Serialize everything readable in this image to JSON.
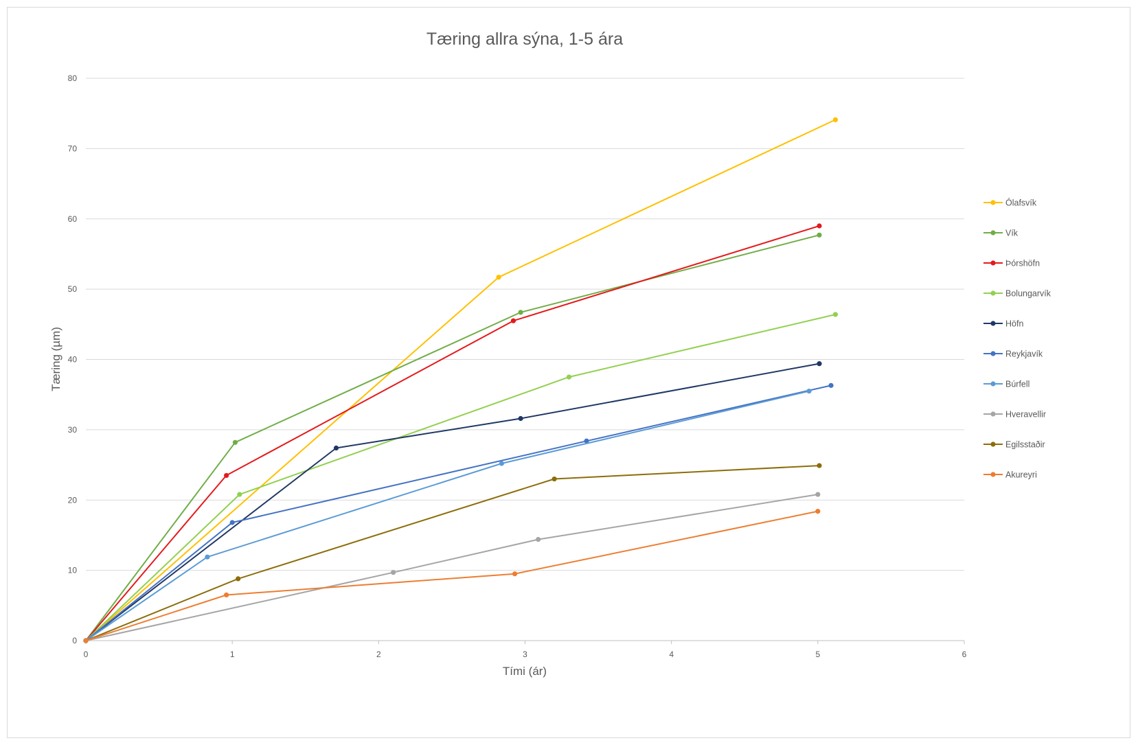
{
  "chart_data": {
    "type": "line",
    "title": "Tæring allra sýna, 1-5 ára",
    "xlabel": "Tími (ár)",
    "ylabel": "Tæring (µm)",
    "xlim": [
      0,
      6
    ],
    "ylim": [
      0,
      80
    ],
    "x_ticks": [
      "0",
      "1",
      "2",
      "3",
      "4",
      "5",
      "6"
    ],
    "y_ticks": [
      "0",
      "10",
      "20",
      "30",
      "40",
      "50",
      "60",
      "70",
      "80"
    ],
    "grid": "horizontal",
    "legend_position": "right",
    "series": [
      {
        "name": "Ólafsvík",
        "color": "#FFC000",
        "points": [
          [
            0,
            0
          ],
          [
            2.82,
            51.7
          ],
          [
            5.12,
            74.1
          ]
        ]
      },
      {
        "name": "Vík",
        "color": "#70AD47",
        "points": [
          [
            0,
            0
          ],
          [
            1.02,
            28.2
          ],
          [
            2.97,
            46.7
          ],
          [
            5.01,
            57.7
          ]
        ]
      },
      {
        "name": "Þórshöfn",
        "color": "#E31A1C",
        "points": [
          [
            0,
            0
          ],
          [
            0.96,
            23.5
          ],
          [
            2.92,
            45.5
          ],
          [
            5.01,
            59.0
          ]
        ]
      },
      {
        "name": "Bolungarvík",
        "color": "#92D050",
        "points": [
          [
            0,
            0
          ],
          [
            1.05,
            20.8
          ],
          [
            3.3,
            37.5
          ],
          [
            5.12,
            46.4
          ]
        ]
      },
      {
        "name": "Höfn",
        "color": "#203864",
        "points": [
          [
            0,
            0
          ],
          [
            1.71,
            27.4
          ],
          [
            2.97,
            31.6
          ],
          [
            5.01,
            39.4
          ]
        ]
      },
      {
        "name": "Reykjavík",
        "color": "#4472C4",
        "points": [
          [
            0,
            0
          ],
          [
            1.0,
            16.8
          ],
          [
            3.42,
            28.4
          ],
          [
            5.09,
            36.3
          ]
        ]
      },
      {
        "name": "Búrfell",
        "color": "#5B9BD5",
        "points": [
          [
            0,
            0
          ],
          [
            0.83,
            11.9
          ],
          [
            2.84,
            25.2
          ],
          [
            4.94,
            35.5
          ]
        ]
      },
      {
        "name": "Hveravellir",
        "color": "#A5A5A5",
        "points": [
          [
            0,
            0
          ],
          [
            2.1,
            9.7
          ],
          [
            3.09,
            14.4
          ],
          [
            5.0,
            20.8
          ]
        ]
      },
      {
        "name": "Egilsstaðir",
        "color": "#8C6D0A",
        "points": [
          [
            0,
            0
          ],
          [
            1.04,
            8.8
          ],
          [
            3.2,
            23.0
          ],
          [
            5.01,
            24.9
          ]
        ]
      },
      {
        "name": "Akureyri",
        "color": "#ED7D31",
        "points": [
          [
            0,
            0
          ],
          [
            0.96,
            6.5
          ],
          [
            2.93,
            9.5
          ],
          [
            5.0,
            18.4
          ]
        ]
      }
    ]
  }
}
